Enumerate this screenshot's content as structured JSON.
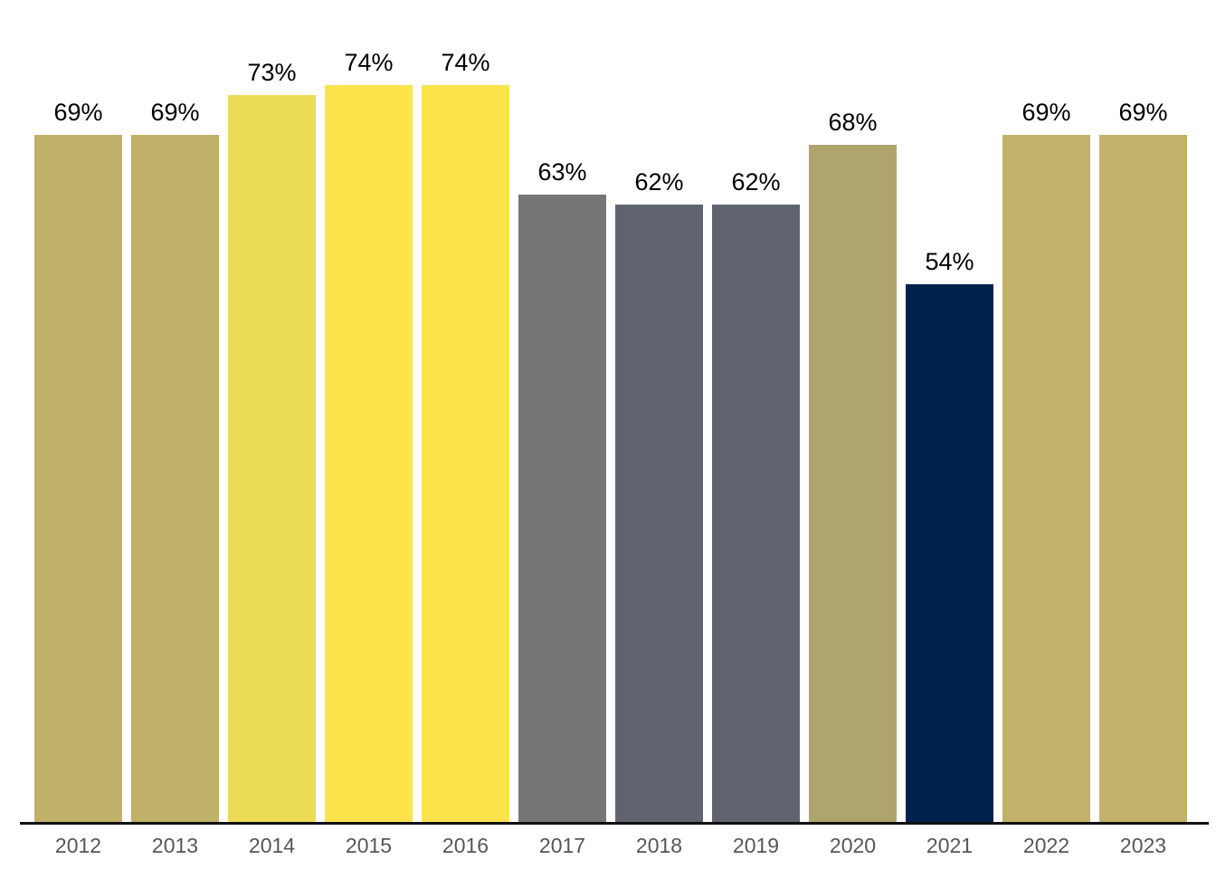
{
  "chart_data": {
    "type": "bar",
    "title": "",
    "xlabel": "",
    "ylabel": "",
    "ylim": [
      0,
      100
    ],
    "grid": false,
    "legend_position": "none",
    "categories": [
      "2012",
      "2013",
      "2014",
      "2015",
      "2016",
      "2017",
      "2018",
      "2019",
      "2020",
      "2021",
      "2022",
      "2023"
    ],
    "values": [
      69,
      69,
      73,
      74,
      74,
      63,
      62,
      62,
      68,
      54,
      69,
      69
    ],
    "value_labels": [
      "69%",
      "69%",
      "73%",
      "74%",
      "74%",
      "63%",
      "62%",
      "62%",
      "68%",
      "54%",
      "69%",
      "69%"
    ],
    "bar_colors": [
      "#c0b169",
      "#c0b169",
      "#ecdc55",
      "#fde44c",
      "#fde44c",
      "#767677",
      "#5f6470",
      "#5f6470",
      "#b0a46e",
      "#02224e",
      "#c2b269",
      "#c2b269"
    ],
    "value_label_color": "#000000",
    "tick_label_color": "#54565b",
    "axis_line_color": "#111111",
    "background_color": "#ffffff"
  }
}
